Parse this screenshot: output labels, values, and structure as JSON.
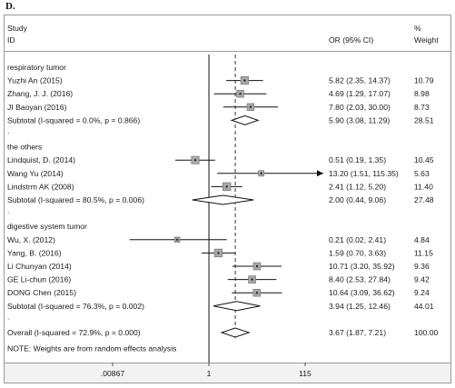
{
  "chart_data": {
    "type": "forest",
    "panel_label": "D.",
    "header": {
      "col1_line1": "Study",
      "col1_line2": "ID",
      "col2": "OR (95% CI)",
      "col3_line1": "%",
      "col3_line2": "Weight"
    },
    "x_scale": "log",
    "xlim": [
      0.00867,
      115
    ],
    "x_ticks": [
      ".00867",
      "1",
      "115"
    ],
    "dashed_line_at": 3.67,
    "rows": [
      {
        "kind": "group",
        "label": "respiratory tumor"
      },
      {
        "kind": "study",
        "label": "Yuzhi An (2015)",
        "or": 5.82,
        "lo": 2.35,
        "hi": 14.37,
        "ci_text": "5.82 (2.35, 14.37)",
        "weight": "10.79"
      },
      {
        "kind": "study",
        "label": "Zhang, J. J. (2016)",
        "or": 4.69,
        "lo": 1.29,
        "hi": 17.07,
        "ci_text": "4.69 (1.29, 17.07)",
        "weight": "8.98"
      },
      {
        "kind": "study",
        "label": "JI Baoyan (2016)",
        "or": 7.8,
        "lo": 2.03,
        "hi": 30.0,
        "ci_text": "7.80 (2.03, 30.00)",
        "weight": "8.73"
      },
      {
        "kind": "subtotal",
        "label": "Subtotal  (I-squared = 0.0%, p = 0.866)",
        "or": 5.9,
        "lo": 3.08,
        "hi": 11.29,
        "ci_text": "5.90 (3.08, 11.29)",
        "weight": "28.51"
      },
      {
        "kind": "gap",
        "label": "."
      },
      {
        "kind": "group",
        "label": "the others"
      },
      {
        "kind": "study",
        "label": "Lindquist, D. (2014)",
        "or": 0.51,
        "lo": 0.19,
        "hi": 1.35,
        "ci_text": "0.51 (0.19, 1.35)",
        "weight": "10.45"
      },
      {
        "kind": "study",
        "label": "Wang Yu (2014)",
        "or": 13.2,
        "lo": 1.51,
        "hi": 115.35,
        "ci_text": "13.20 (1.51, 115.35)",
        "weight": "5.63",
        "arrow_right": true
      },
      {
        "kind": "study",
        "label": "Lindstrm AK (2008)",
        "or": 2.41,
        "lo": 1.12,
        "hi": 5.2,
        "ci_text": "2.41 (1.12, 5.20)",
        "weight": "11.40"
      },
      {
        "kind": "subtotal",
        "label": "Subtotal  (I-squared = 80.5%, p = 0.006)",
        "or": 2.0,
        "lo": 0.44,
        "hi": 9.06,
        "ci_text": "2.00 (0.44, 9.06)",
        "weight": "27.48"
      },
      {
        "kind": "gap",
        "label": "."
      },
      {
        "kind": "group",
        "label": "digestive system tumor"
      },
      {
        "kind": "study",
        "label": "Wu, X. (2012)",
        "or": 0.21,
        "lo": 0.02,
        "hi": 2.41,
        "ci_text": "0.21 (0.02, 2.41)",
        "weight": "4.84"
      },
      {
        "kind": "study",
        "label": "Yang, B. (2016)",
        "or": 1.59,
        "lo": 0.7,
        "hi": 3.63,
        "ci_text": "1.59 (0.70, 3.63)",
        "weight": "11.15"
      },
      {
        "kind": "study",
        "label": "Li Chunyan (2014)",
        "or": 10.71,
        "lo": 3.2,
        "hi": 35.92,
        "ci_text": "10.71 (3.20, 35.92)",
        "weight": "9.36"
      },
      {
        "kind": "study",
        "label": "GE Li-chun (2016)",
        "or": 8.4,
        "lo": 2.53,
        "hi": 27.84,
        "ci_text": "8.40 (2.53, 27.84)",
        "weight": "9.42"
      },
      {
        "kind": "study",
        "label": "DONG Chen (2015)",
        "or": 10.64,
        "lo": 3.09,
        "hi": 36.62,
        "ci_text": "10.64 (3.09, 36.62)",
        "weight": "9.24"
      },
      {
        "kind": "subtotal",
        "label": "Subtotal  (I-squared = 76.3%, p = 0.002)",
        "or": 3.94,
        "lo": 1.25,
        "hi": 12.46,
        "ci_text": "3.94 (1.25, 12.46)",
        "weight": "44.01"
      },
      {
        "kind": "gap",
        "label": "."
      },
      {
        "kind": "overall",
        "label": "Overall  (I-squared = 72.9%, p = 0.000)",
        "or": 3.67,
        "lo": 1.87,
        "hi": 7.21,
        "ci_text": "3.67 (1.87, 7.21)",
        "weight": "100.00"
      }
    ],
    "note": "NOTE: Weights are from random effects analysis",
    "colors": {
      "box_fill": "#a9a9a9",
      "box_stroke": "#6e6e6e",
      "line": "#111111",
      "frame": "#9a9a9a",
      "axis_band": "#f2f2f2"
    }
  }
}
